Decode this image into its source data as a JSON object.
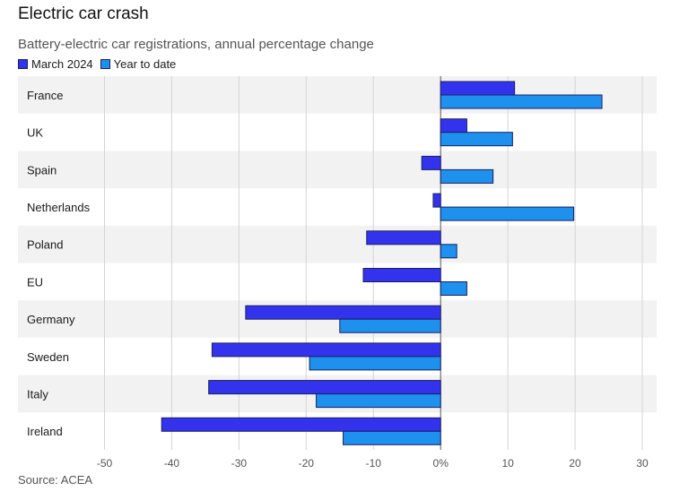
{
  "chart_data": {
    "type": "bar",
    "orientation": "horizontal",
    "title": "Electric car crash",
    "subtitle": "Battery-electric car registrations, annual percentage change",
    "source": "Source: ACEA",
    "categories": [
      "France",
      "UK",
      "Spain",
      "Netherlands",
      "Poland",
      "EU",
      "Germany",
      "Sweden",
      "Italy",
      "Ireland"
    ],
    "series": [
      {
        "name": "March 2024",
        "color": "#3333ee",
        "values": [
          11,
          3.9,
          -2.8,
          -1.1,
          -11,
          -11.5,
          -29,
          -34,
          -34.5,
          -41.5
        ]
      },
      {
        "name": "Year to date",
        "color": "#1e90ee",
        "values": [
          24,
          10.7,
          7.8,
          19.8,
          2.4,
          3.9,
          -15,
          -19.5,
          -18.5,
          -14.5
        ]
      }
    ],
    "xlim": [
      -55,
      32
    ],
    "ticks": [
      -50,
      -40,
      -30,
      -20,
      -10,
      0,
      10,
      20,
      30
    ],
    "tick_labels": [
      "-50",
      "-40",
      "-30",
      "-20",
      "-10",
      "0%",
      "10",
      "20",
      "30"
    ],
    "grid": true
  }
}
